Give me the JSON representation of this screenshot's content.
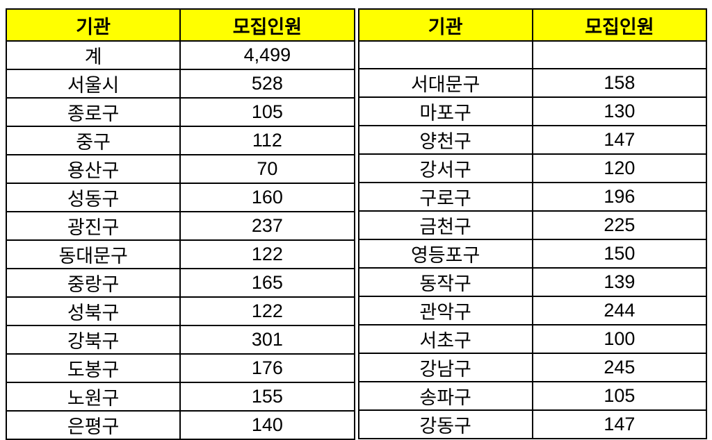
{
  "colors": {
    "header_bg": "#ffff00",
    "border": "#000000",
    "text": "#000000"
  },
  "table": {
    "headers": [
      "기관",
      "모집인원"
    ],
    "left_rows": [
      {
        "org": "계",
        "count": "4,499"
      },
      {
        "org": "서울시",
        "count": "528"
      },
      {
        "org": "종로구",
        "count": "105"
      },
      {
        "org": "중구",
        "count": "112"
      },
      {
        "org": "용산구",
        "count": "70"
      },
      {
        "org": "성동구",
        "count": "160"
      },
      {
        "org": "광진구",
        "count": "237"
      },
      {
        "org": "동대문구",
        "count": "122"
      },
      {
        "org": "중랑구",
        "count": "165"
      },
      {
        "org": "성북구",
        "count": "122"
      },
      {
        "org": "강북구",
        "count": "301"
      },
      {
        "org": "도봉구",
        "count": "176"
      },
      {
        "org": "노원구",
        "count": "155"
      },
      {
        "org": "은평구",
        "count": "140"
      }
    ],
    "right_rows": [
      {
        "org": "",
        "count": ""
      },
      {
        "org": "서대문구",
        "count": "158"
      },
      {
        "org": "마포구",
        "count": "130"
      },
      {
        "org": "양천구",
        "count": "147"
      },
      {
        "org": "강서구",
        "count": "120"
      },
      {
        "org": "구로구",
        "count": "196"
      },
      {
        "org": "금천구",
        "count": "225"
      },
      {
        "org": "영등포구",
        "count": "150"
      },
      {
        "org": "동작구",
        "count": "139"
      },
      {
        "org": "관악구",
        "count": "244"
      },
      {
        "org": "서초구",
        "count": "100"
      },
      {
        "org": "강남구",
        "count": "245"
      },
      {
        "org": "송파구",
        "count": "105"
      },
      {
        "org": "강동구",
        "count": "147"
      }
    ]
  },
  "chart_data": {
    "type": "table",
    "title": "",
    "columns": [
      "기관",
      "모집인원",
      "기관",
      "모집인원"
    ],
    "rows": [
      [
        "계",
        "4,499",
        "",
        ""
      ],
      [
        "서울시",
        "528",
        "서대문구",
        "158"
      ],
      [
        "종로구",
        "105",
        "마포구",
        "130"
      ],
      [
        "중구",
        "112",
        "양천구",
        "147"
      ],
      [
        "용산구",
        "70",
        "강서구",
        "120"
      ],
      [
        "성동구",
        "160",
        "구로구",
        "196"
      ],
      [
        "광진구",
        "237",
        "금천구",
        "225"
      ],
      [
        "동대문구",
        "122",
        "영등포구",
        "150"
      ],
      [
        "중랑구",
        "165",
        "동작구",
        "139"
      ],
      [
        "성북구",
        "122",
        "관악구",
        "244"
      ],
      [
        "강북구",
        "301",
        "서초구",
        "100"
      ],
      [
        "도봉구",
        "176",
        "강남구",
        "245"
      ],
      [
        "노원구",
        "155",
        "송파구",
        "105"
      ],
      [
        "은평구",
        "140",
        "강동구",
        "147"
      ]
    ],
    "layout_hints": {
      "header_background": "#ffff00",
      "grid": true,
      "two_panel_split": "left panel rows 계..은평구, right panel rows blank..강동구, double border between panels"
    }
  }
}
